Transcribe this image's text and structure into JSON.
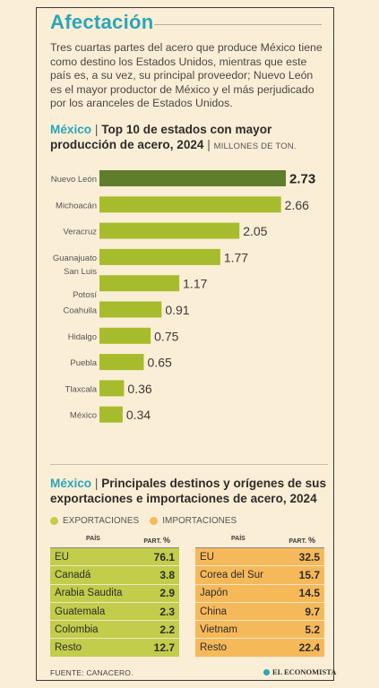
{
  "title": "Afectación",
  "intro": "Tres cuartas partes del acero que produce México tiene como destino los Estados Unidos, mientras que este país es, a su vez, su principal proveedor; Nuevo León es el mayor productor de México y el más perjudicado por los aranceles de Estados Unidos.",
  "colors": {
    "accent": "#2aa6b9",
    "bar": "#a7bc2c",
    "bar_highlight": "#5f7d2c",
    "exports": "#c1cd4b",
    "imports": "#f6b95a",
    "background": "#fbeed6"
  },
  "chart_section": {
    "country": "México",
    "separator": "|",
    "heading": "Top 10 de estados con mayor producción de acero, 2024",
    "unit_separator": "|",
    "unit": "MILLONES DE TON."
  },
  "chart_data": {
    "type": "bar",
    "orientation": "horizontal",
    "title": "Top 10 de estados con mayor producción de acero, 2024",
    "unit": "MILLONES DE TON.",
    "categories": [
      "Nuevo León",
      "Michoacán",
      "Veracruz",
      "Guanajuato",
      "San Luis Potosí",
      "Coahuila",
      "Hidalgo",
      "Puebla",
      "Tlaxcala",
      "México"
    ],
    "values": [
      2.73,
      2.66,
      2.05,
      1.77,
      1.17,
      0.91,
      0.75,
      0.65,
      0.36,
      0.34
    ],
    "value_labels": [
      "2.73",
      "2.66",
      "2.05",
      "1.77",
      "1.17",
      "0.91",
      "0.75",
      "0.65",
      "0.36",
      "0.34"
    ],
    "highlight": "Nuevo León",
    "grid": false
  },
  "trade_section": {
    "country": "México",
    "separator": "|",
    "heading": "Principales destinos y orígenes de sus exportaciones e importaciones de acero, 2024",
    "legend_exports": "EXPORTACIONES",
    "legend_imports": "IMPORTACIONES"
  },
  "exports_table": {
    "col_country": "PAÍS",
    "col_share": "PART.",
    "col_share_unit": "%",
    "rows": [
      {
        "country": "EU",
        "value": "76.1"
      },
      {
        "country": "Canadá",
        "value": "3.8"
      },
      {
        "country": "Arabia Saudita",
        "value": "2.9"
      },
      {
        "country": "Guatemala",
        "value": "2.3"
      },
      {
        "country": "Colombia",
        "value": "2.2"
      },
      {
        "country": "Resto",
        "value": "12.7"
      }
    ]
  },
  "imports_table": {
    "col_country": "PAÍS",
    "col_share": "PART.",
    "col_share_unit": "%",
    "rows": [
      {
        "country": "EU",
        "value": "32.5"
      },
      {
        "country": "Corea del Sur",
        "value": "15.7"
      },
      {
        "country": "Japón",
        "value": "14.5"
      },
      {
        "country": "China",
        "value": "9.7"
      },
      {
        "country": "Vietnam",
        "value": "5.2"
      },
      {
        "country": "Resto",
        "value": "22.4"
      }
    ]
  },
  "source": "FUENTE: CANACERO.",
  "brand": "EL ECONOMISTA"
}
